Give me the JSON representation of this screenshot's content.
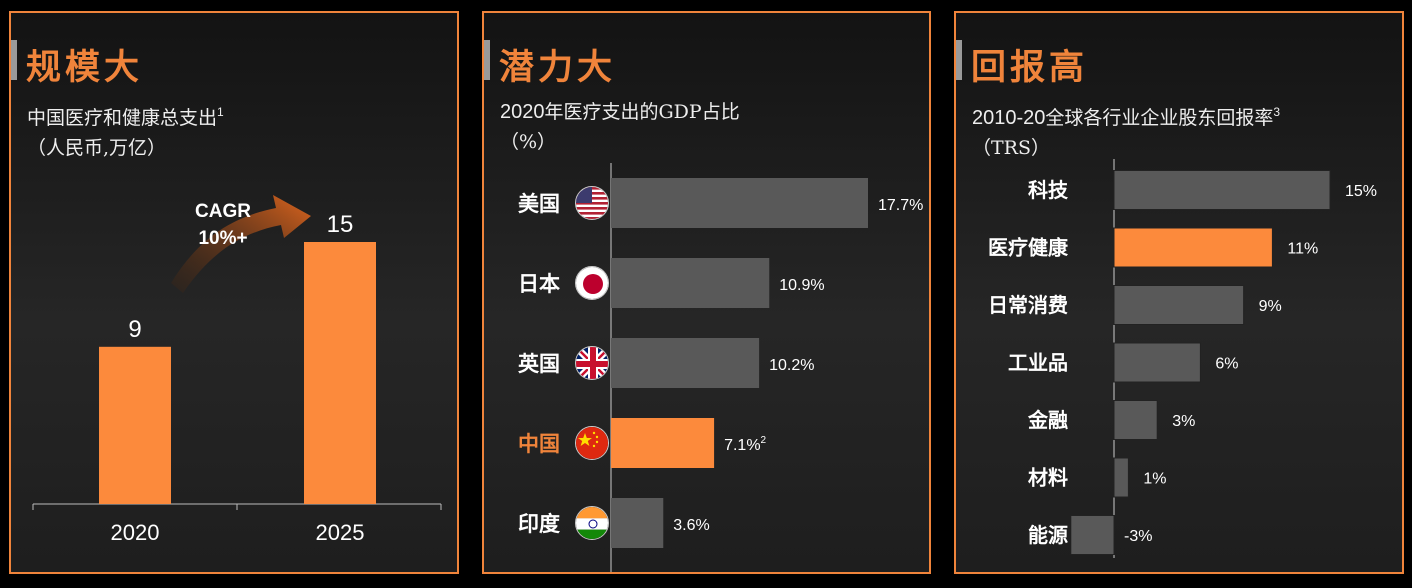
{
  "colors": {
    "accent": "#f0843b",
    "orange_bar": "#fc8a3c",
    "gray_bar": "#595959",
    "background": "#000000"
  },
  "panels": [
    {
      "title": "规模大",
      "subtitle_line1": "中国医疗和健康总支出",
      "subtitle_sup": "1",
      "subtitle_line2": "（人民币,万亿）",
      "cagr_line1": "CAGR",
      "cagr_line2": "10%+"
    },
    {
      "title": "潜力大",
      "subtitle_year": "2020",
      "subtitle_line1": "年医疗支出的GDP占比",
      "subtitle_line2": "（%）"
    },
    {
      "title": "回报高",
      "subtitle_year": "2010-20",
      "subtitle_line1": "全球各行业企业股东回报率",
      "subtitle_sup": "3",
      "subtitle_line2": "（TRS）"
    }
  ],
  "chart_data": [
    {
      "type": "bar",
      "categories": [
        "2020",
        "2025"
      ],
      "values": [
        9,
        15
      ],
      "value_labels": [
        "9",
        "15"
      ],
      "ylim": [
        0,
        16
      ],
      "highlight": [
        true,
        true
      ]
    },
    {
      "type": "bar",
      "orientation": "horizontal",
      "categories": [
        "美国",
        "日本",
        "英国",
        "中国",
        "印度"
      ],
      "values": [
        17.7,
        10.9,
        10.2,
        7.1,
        3.6
      ],
      "value_labels": [
        "17.7%",
        "10.9%",
        "10.2%",
        "7.1%",
        "3.6%"
      ],
      "label_sup": [
        "",
        "",
        "",
        "2",
        ""
      ],
      "flags": [
        "us-flag-icon",
        "japan-flag-icon",
        "uk-flag-icon",
        "china-flag-icon",
        "india-flag-icon"
      ],
      "highlight_index": 3,
      "xlim": [
        0,
        18
      ]
    },
    {
      "type": "bar",
      "orientation": "horizontal",
      "categories": [
        "科技",
        "医疗健康",
        "日常消费",
        "工业品",
        "金融",
        "材料",
        "能源"
      ],
      "values": [
        15,
        11,
        9,
        6,
        3,
        1,
        -3
      ],
      "value_labels": [
        "15%",
        "11%",
        "9%",
        "6%",
        "3%",
        "1%",
        "-3%"
      ],
      "highlight_index": 1,
      "xlim": [
        -3,
        15
      ]
    }
  ]
}
